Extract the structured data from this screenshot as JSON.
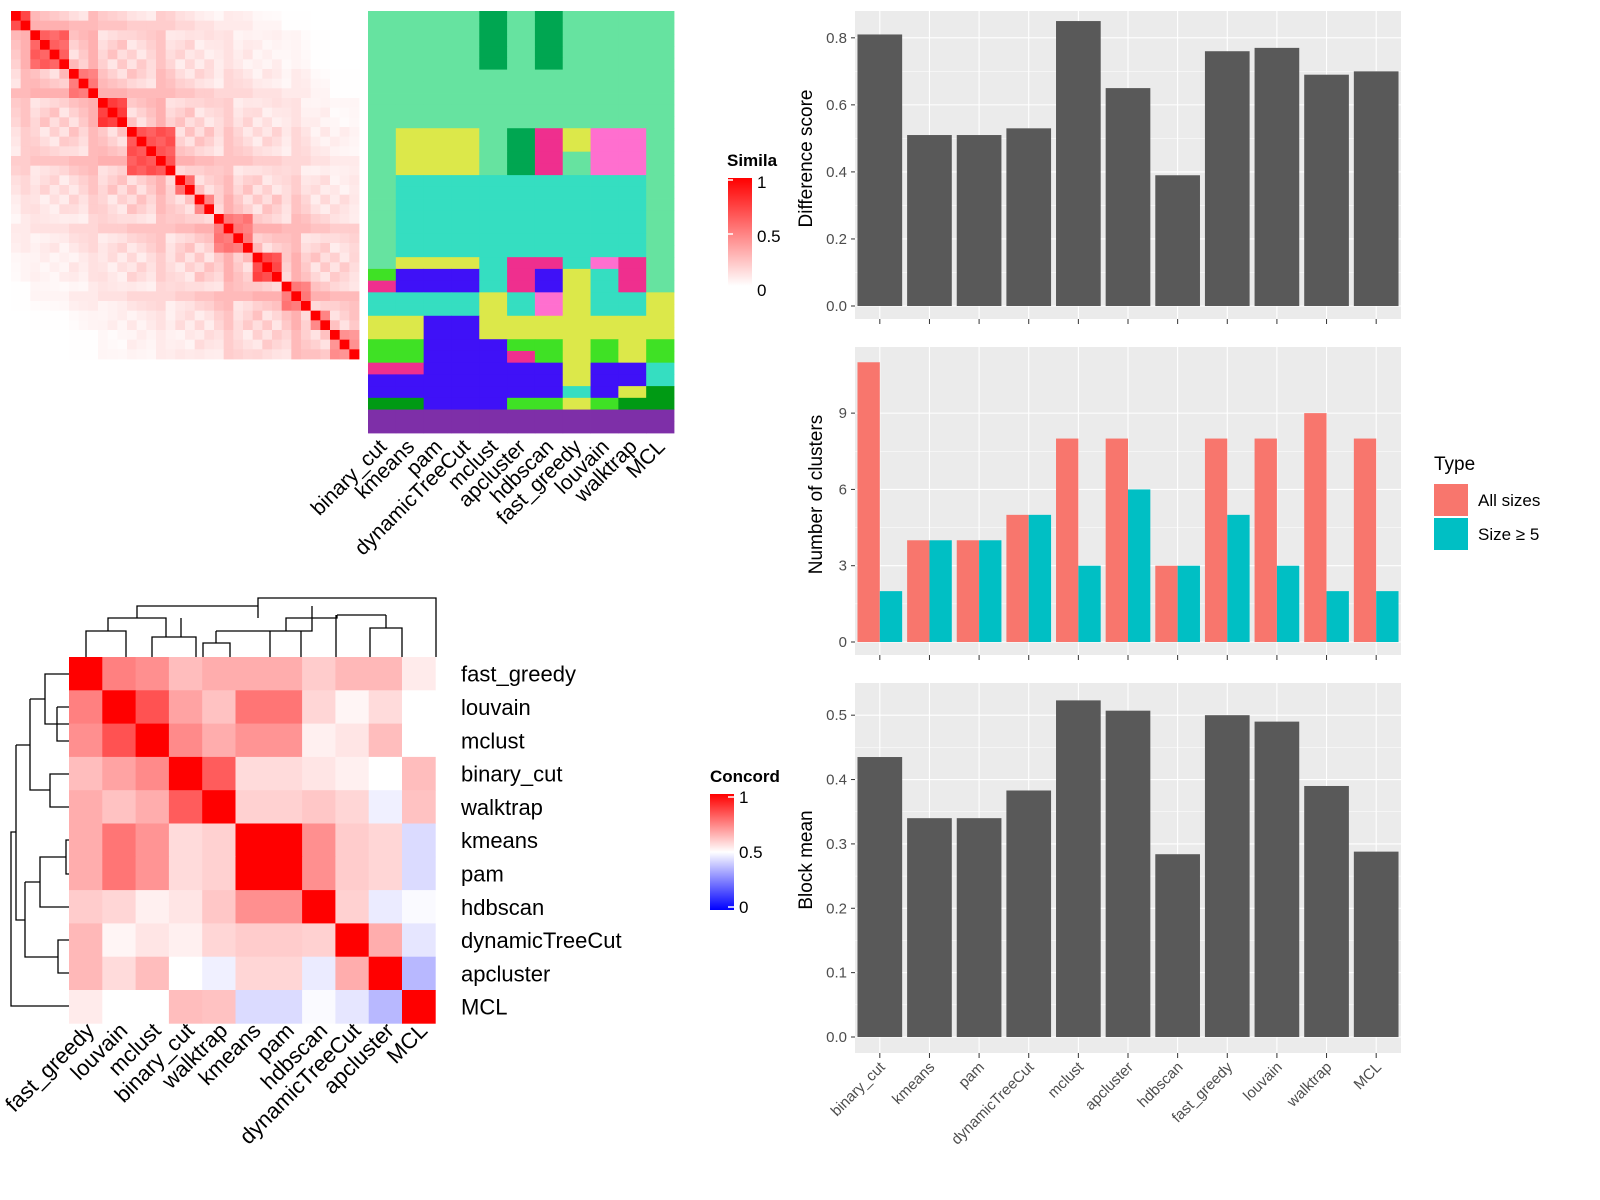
{
  "colors": {
    "panel_bg": "#EBEBEB",
    "grid": "#FFFFFF",
    "bar_grey": "#595959",
    "all_sizes": "#F8766D",
    "size_ge5": "#00BFC4",
    "heat_high": "#FF0000",
    "heat_mid": "#FFFFFF",
    "heat_low": "#0000FF",
    "text": "#000000",
    "axis_text": "#4D4D4D"
  },
  "methods_order": [
    "binary_cut",
    "kmeans",
    "pam",
    "dynamicTreeCut",
    "mclust",
    "apcluster",
    "hdbscan",
    "fast_greedy",
    "louvain",
    "walktrap",
    "MCL"
  ],
  "similarity_heatmap": {
    "legend_title": "Simila",
    "legend_ticks": [
      "1",
      "0.5",
      "0"
    ],
    "n": 36,
    "blocks": [
      {
        "start": 0,
        "size": 2,
        "within": 0.75
      },
      {
        "start": 2,
        "size": 4,
        "within": 0.65
      },
      {
        "start": 6,
        "size": 3,
        "within": 0.55
      },
      {
        "start": 9,
        "size": 3,
        "within": 0.8
      },
      {
        "start": 12,
        "size": 5,
        "within": 0.7
      },
      {
        "start": 17,
        "size": 2,
        "within": 0.6
      },
      {
        "start": 19,
        "size": 2,
        "within": 0.5
      },
      {
        "start": 21,
        "size": 4,
        "within": 0.55
      },
      {
        "start": 25,
        "size": 3,
        "within": 0.75
      },
      {
        "start": 28,
        "size": 3,
        "within": 0.55
      },
      {
        "start": 31,
        "size": 2,
        "within": 0.5
      },
      {
        "start": 33,
        "size": 3,
        "within": 0.45
      }
    ]
  },
  "cluster_labels_panel": {
    "columns": [
      "binary_cut",
      "kmeans",
      "pam",
      "dynamicTreeCut",
      "mclust",
      "apcluster",
      "hdbscan",
      "fast_greedy",
      "louvain",
      "walktrap",
      "MCL"
    ],
    "palette": [
      "#66E3A0",
      "#00A651",
      "#DCE84A",
      "#EF2F8E",
      "#FF6FCF",
      "#35DEC1",
      "#3F11F7",
      "#3FE125",
      "#009A14",
      "#7E2FA8",
      "#2B8A3E"
    ],
    "rows": [
      [
        0,
        0,
        0,
        0,
        1,
        0,
        1,
        0,
        0,
        0,
        0
      ],
      [
        0,
        0,
        0,
        0,
        1,
        0,
        1,
        0,
        0,
        0,
        0
      ],
      [
        0,
        0,
        0,
        0,
        1,
        0,
        1,
        0,
        0,
        0,
        0
      ],
      [
        0,
        0,
        0,
        0,
        1,
        0,
        1,
        0,
        0,
        0,
        0
      ],
      [
        0,
        0,
        0,
        0,
        1,
        0,
        1,
        0,
        0,
        0,
        0
      ],
      [
        0,
        0,
        0,
        0,
        0,
        0,
        0,
        0,
        0,
        0,
        0
      ],
      [
        0,
        0,
        0,
        0,
        0,
        0,
        0,
        0,
        0,
        0,
        0
      ],
      [
        0,
        0,
        0,
        0,
        0,
        0,
        0,
        0,
        0,
        0,
        0
      ],
      [
        0,
        0,
        0,
        0,
        0,
        0,
        0,
        0,
        0,
        0,
        0
      ],
      [
        0,
        0,
        0,
        0,
        0,
        0,
        0,
        0,
        0,
        0,
        0
      ],
      [
        0,
        2,
        2,
        2,
        0,
        1,
        3,
        2,
        4,
        4,
        0
      ],
      [
        0,
        2,
        2,
        2,
        0,
        1,
        3,
        2,
        4,
        4,
        0
      ],
      [
        0,
        2,
        2,
        2,
        0,
        1,
        3,
        0,
        4,
        4,
        0
      ],
      [
        0,
        2,
        2,
        2,
        0,
        1,
        3,
        0,
        4,
        4,
        0
      ],
      [
        0,
        5,
        5,
        5,
        5,
        5,
        5,
        5,
        5,
        5,
        0
      ],
      [
        0,
        5,
        5,
        5,
        5,
        5,
        5,
        5,
        5,
        5,
        0
      ],
      [
        0,
        5,
        5,
        5,
        5,
        5,
        5,
        5,
        5,
        5,
        0
      ],
      [
        0,
        5,
        5,
        5,
        5,
        5,
        5,
        5,
        5,
        5,
        0
      ],
      [
        0,
        5,
        5,
        5,
        5,
        5,
        5,
        5,
        5,
        5,
        0
      ],
      [
        0,
        5,
        5,
        5,
        5,
        5,
        5,
        5,
        5,
        5,
        0
      ],
      [
        0,
        5,
        5,
        5,
        5,
        5,
        5,
        5,
        5,
        5,
        0
      ],
      [
        0,
        2,
        2,
        2,
        5,
        3,
        3,
        5,
        4,
        3,
        0
      ],
      [
        7,
        6,
        6,
        6,
        5,
        3,
        6,
        2,
        5,
        3,
        0
      ],
      [
        3,
        6,
        6,
        6,
        5,
        3,
        6,
        2,
        5,
        3,
        0
      ],
      [
        5,
        5,
        5,
        5,
        2,
        5,
        4,
        2,
        5,
        5,
        2
      ],
      [
        5,
        5,
        5,
        5,
        2,
        5,
        4,
        2,
        5,
        5,
        2
      ],
      [
        2,
        2,
        6,
        6,
        2,
        2,
        2,
        2,
        2,
        2,
        2
      ],
      [
        2,
        2,
        6,
        6,
        2,
        2,
        2,
        2,
        2,
        2,
        2
      ],
      [
        7,
        7,
        6,
        6,
        6,
        7,
        7,
        2,
        7,
        2,
        7
      ],
      [
        7,
        7,
        6,
        6,
        6,
        3,
        7,
        2,
        7,
        2,
        7
      ],
      [
        3,
        3,
        6,
        6,
        6,
        6,
        6,
        2,
        6,
        6,
        5
      ],
      [
        6,
        6,
        6,
        6,
        6,
        6,
        6,
        2,
        6,
        6,
        5
      ],
      [
        6,
        6,
        6,
        6,
        6,
        6,
        6,
        5,
        6,
        2,
        8
      ],
      [
        8,
        8,
        6,
        6,
        6,
        7,
        7,
        2,
        7,
        8,
        8
      ],
      [
        9,
        9,
        9,
        9,
        9,
        9,
        9,
        9,
        9,
        9,
        9
      ],
      [
        9,
        9,
        9,
        9,
        9,
        9,
        9,
        9,
        9,
        9,
        9
      ]
    ]
  },
  "concordance_heatmap": {
    "legend_title": "Concord",
    "legend_ticks": [
      "1",
      "0.5",
      "0"
    ],
    "order": [
      "fast_greedy",
      "louvain",
      "mclust",
      "binary_cut",
      "walktrap",
      "kmeans",
      "pam",
      "hdbscan",
      "dynamicTreeCut",
      "apcluster",
      "MCL"
    ],
    "matrix": [
      [
        1.0,
        0.75,
        0.72,
        0.63,
        0.66,
        0.66,
        0.66,
        0.6,
        0.64,
        0.64,
        0.54
      ],
      [
        0.75,
        1.0,
        0.84,
        0.68,
        0.62,
        0.77,
        0.77,
        0.58,
        0.52,
        0.57,
        0.5
      ],
      [
        0.72,
        0.84,
        1.0,
        0.73,
        0.66,
        0.71,
        0.71,
        0.53,
        0.55,
        0.63,
        0.5
      ],
      [
        0.63,
        0.68,
        0.73,
        1.0,
        0.82,
        0.57,
        0.57,
        0.55,
        0.53,
        0.5,
        0.63
      ],
      [
        0.66,
        0.62,
        0.66,
        0.82,
        1.0,
        0.59,
        0.59,
        0.61,
        0.58,
        0.47,
        0.62
      ],
      [
        0.66,
        0.77,
        0.71,
        0.57,
        0.59,
        1.0,
        1.0,
        0.72,
        0.6,
        0.58,
        0.43
      ],
      [
        0.66,
        0.77,
        0.71,
        0.57,
        0.59,
        1.0,
        1.0,
        0.72,
        0.6,
        0.58,
        0.43
      ],
      [
        0.6,
        0.58,
        0.53,
        0.55,
        0.61,
        0.72,
        0.72,
        1.0,
        0.59,
        0.46,
        0.49
      ],
      [
        0.64,
        0.52,
        0.55,
        0.53,
        0.58,
        0.6,
        0.6,
        0.59,
        1.0,
        0.66,
        0.45
      ],
      [
        0.64,
        0.57,
        0.63,
        0.5,
        0.47,
        0.58,
        0.58,
        0.46,
        0.66,
        1.0,
        0.36
      ],
      [
        0.54,
        0.5,
        0.5,
        0.63,
        0.62,
        0.43,
        0.43,
        0.49,
        0.45,
        0.36,
        1.0
      ]
    ]
  },
  "chart_data": [
    {
      "type": "bar",
      "categories": [
        "binary_cut",
        "kmeans",
        "pam",
        "dynamicTreeCut",
        "mclust",
        "apcluster",
        "hdbscan",
        "fast_greedy",
        "louvain",
        "walktrap",
        "MCL"
      ],
      "values": [
        0.81,
        0.51,
        0.51,
        0.53,
        0.85,
        0.65,
        0.39,
        0.76,
        0.77,
        0.69,
        0.7
      ],
      "ylabel": "Difference score",
      "yticks": [
        "0.0",
        "0.2",
        "0.4",
        "0.6",
        "0.8"
      ],
      "ylim": [
        0,
        0.88
      ]
    },
    {
      "type": "bar",
      "categories": [
        "binary_cut",
        "kmeans",
        "pam",
        "dynamicTreeCut",
        "mclust",
        "apcluster",
        "hdbscan",
        "fast_greedy",
        "louvain",
        "walktrap",
        "MCL"
      ],
      "series": [
        {
          "name": "All sizes",
          "values": [
            11,
            4,
            4,
            5,
            8,
            8,
            3,
            8,
            8,
            9,
            8
          ]
        },
        {
          "name": "Size ≥ 5",
          "values": [
            2,
            4,
            4,
            5,
            3,
            6,
            3,
            5,
            3,
            2,
            2
          ]
        }
      ],
      "ylabel": "Number of clusters",
      "yticks": [
        "0",
        "3",
        "6",
        "9"
      ],
      "ylim": [
        0,
        11.6
      ],
      "legend_title": "Type",
      "legend_position": "right"
    },
    {
      "type": "bar",
      "categories": [
        "binary_cut",
        "kmeans",
        "pam",
        "dynamicTreeCut",
        "mclust",
        "apcluster",
        "hdbscan",
        "fast_greedy",
        "louvain",
        "walktrap",
        "MCL"
      ],
      "values": [
        0.435,
        0.34,
        0.34,
        0.383,
        0.523,
        0.507,
        0.284,
        0.5,
        0.49,
        0.39,
        0.288
      ],
      "ylabel": "Block mean",
      "yticks": [
        "0.0",
        "0.1",
        "0.2",
        "0.3",
        "0.4",
        "0.5"
      ],
      "ylim": [
        0,
        0.55
      ]
    }
  ]
}
